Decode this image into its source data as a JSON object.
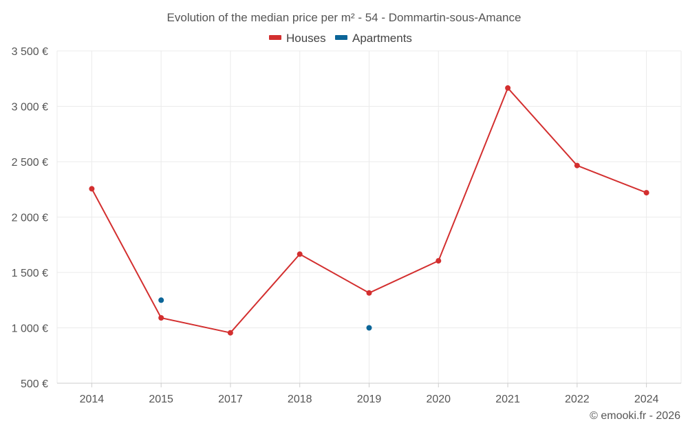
{
  "chart_data": {
    "type": "line",
    "title": "Evolution of the median price per m² - 54 - Dommartin-sous-Amance",
    "categories": [
      "2014",
      "2015",
      "2017",
      "2018",
      "2019",
      "2020",
      "2021",
      "2022",
      "2024"
    ],
    "ylim": [
      500,
      3500
    ],
    "yticks": [
      500,
      1000,
      1500,
      2000,
      2500,
      3000,
      3500
    ],
    "ytick_labels": [
      "500 €",
      "1 000 €",
      "1 500 €",
      "2 000 €",
      "2 500 €",
      "3 000 €",
      "3 500 €"
    ],
    "grid": true,
    "legend_position": "top-center",
    "series": [
      {
        "name": "Houses",
        "color": "#d32f2f",
        "style": "line-with-markers",
        "values": [
          2255,
          1090,
          955,
          1665,
          1315,
          1605,
          3165,
          2465,
          2220
        ]
      },
      {
        "name": "Apartments",
        "color": "#0b6598",
        "style": "markers",
        "values": [
          null,
          1250,
          null,
          null,
          1000,
          null,
          null,
          null,
          null
        ]
      }
    ],
    "credit": "© emooki.fr - 2026"
  }
}
